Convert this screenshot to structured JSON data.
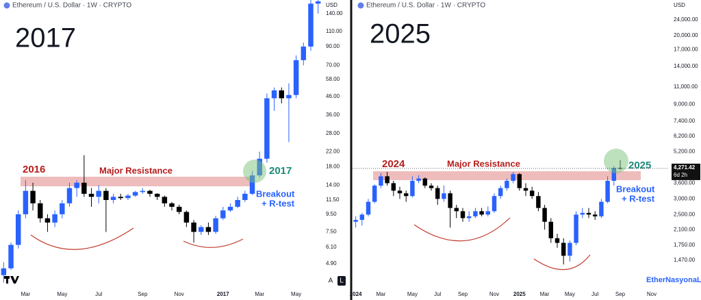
{
  "chart_data": [
    {
      "type": "candlestick",
      "title": "2017",
      "header": "Ethereum / U.S. Dollar · 1W · CRYPTO",
      "currency": "USD",
      "log_scale": true,
      "up_color": "#2962ff",
      "down_color": "#000000",
      "categories": [
        null,
        null,
        null,
        "Mar",
        null,
        null,
        null,
        null,
        "May",
        null,
        null,
        null,
        null,
        "Jul",
        null,
        null,
        null,
        null,
        null,
        "Sep",
        null,
        null,
        null,
        null,
        "Nov",
        null,
        null,
        null,
        null,
        null,
        "2017",
        null,
        null,
        null,
        null,
        "Mar",
        null,
        null,
        null,
        null,
        "May",
        null,
        null,
        null
      ],
      "open": [
        4.2,
        4.6,
        6.3,
        9.5,
        13,
        11,
        9,
        8.5,
        9.5,
        11,
        13.5,
        14.5,
        12.5,
        12,
        13,
        11.5,
        12,
        11.8,
        12.2,
        12.8,
        13,
        12.5,
        12,
        11,
        10.5,
        9.8,
        8.5,
        7.5,
        8,
        7.5,
        9,
        10,
        10.5,
        11.5,
        12.5,
        16,
        20,
        45,
        50,
        45,
        47,
        75,
        90,
        160
      ],
      "high": [
        5,
        6.5,
        10,
        15,
        14.5,
        11.5,
        9.5,
        10,
        11.5,
        14.5,
        15,
        21,
        13.5,
        14,
        13.5,
        12.5,
        12.5,
        12.5,
        13,
        13.5,
        13.2,
        12.6,
        12.2,
        11.2,
        10.8,
        10,
        8.8,
        8.2,
        8.5,
        9.3,
        10.5,
        11,
        12,
        13,
        17,
        22,
        48,
        52,
        52,
        55,
        80,
        95,
        170,
        170
      ],
      "low": [
        3.8,
        4.5,
        6,
        9,
        10,
        8.5,
        7.5,
        8,
        9,
        10.5,
        12,
        12,
        10.5,
        11,
        7.5,
        11,
        11.5,
        11.5,
        12,
        12.5,
        12,
        11.5,
        10.5,
        10,
        9.5,
        8,
        6.5,
        7.2,
        7.2,
        7.3,
        8.8,
        9.8,
        10.3,
        11.2,
        12.3,
        15.5,
        19,
        38,
        42,
        25,
        45,
        70,
        85,
        140
      ],
      "close": [
        4.6,
        6.3,
        9.5,
        13,
        11,
        9,
        8.5,
        9.5,
        11,
        13.5,
        14.5,
        12.5,
        12,
        13,
        11.5,
        12,
        11.8,
        12.2,
        12.8,
        13,
        12.5,
        12,
        11,
        10.5,
        9.8,
        8.5,
        7.5,
        8,
        7.5,
        9,
        10,
        10.5,
        11.5,
        12.5,
        16,
        20,
        45,
        50,
        45,
        47,
        75,
        90,
        160,
        165
      ],
      "ylim": [
        3.55,
        168
      ],
      "yticks": [
        {
          "value": 4.9,
          "label": "4.90"
        },
        {
          "value": 6.1,
          "label": "6.10"
        },
        {
          "value": 7.5,
          "label": "7.50"
        },
        {
          "value": 9.5,
          "label": "9.50"
        },
        {
          "value": 11.5,
          "label": "11.50"
        },
        {
          "value": 14,
          "label": "14.00"
        },
        {
          "value": 18,
          "label": "18.00"
        },
        {
          "value": 22,
          "label": "22.00"
        },
        {
          "value": 28,
          "label": "28.00"
        },
        {
          "value": 36,
          "label": "36.00"
        },
        {
          "value": 46,
          "label": "46.00"
        },
        {
          "value": 58,
          "label": "58.00"
        },
        {
          "value": 70,
          "label": "70.00"
        },
        {
          "value": 90,
          "label": "90.00"
        },
        {
          "value": 110,
          "label": "110.00"
        },
        {
          "value": 140,
          "label": "140.00"
        }
      ],
      "annotations": [
        "2016",
        "Major Resistance",
        "2017",
        "Breakout",
        "+ R-test"
      ],
      "buttons": [
        "A",
        "L"
      ]
    },
    {
      "type": "candlestick",
      "title": "2025",
      "header": "Ethereum / U.S. Dollar · 1W · CRYPTO",
      "currency": "USD",
      "log_scale": true,
      "up_color": "#2962ff",
      "down_color": "#000000",
      "categories": [
        "2024",
        null,
        null,
        null,
        "Mar",
        null,
        null,
        null,
        null,
        "May",
        null,
        null,
        null,
        "Jul",
        null,
        null,
        null,
        "Sep",
        null,
        null,
        null,
        null,
        "Nov",
        null,
        null,
        null,
        "2025",
        null,
        null,
        null,
        "Mar",
        null,
        null,
        null,
        "May",
        null,
        null,
        null,
        "Jul",
        null,
        null,
        null,
        "Sep",
        null,
        null,
        null,
        null,
        "Nov",
        null,
        null
      ],
      "open": [
        2300,
        2350,
        2500,
        2900,
        3500,
        3900,
        3600,
        3300,
        3200,
        3100,
        3700,
        3800,
        3500,
        3400,
        3000,
        3200,
        2700,
        2600,
        2400,
        2450,
        2600,
        2500,
        2600,
        3100,
        3400,
        3700,
        4000,
        3400,
        3300,
        3100,
        2700,
        2300,
        1900,
        1800,
        1550,
        1800,
        2500,
        2550,
        2500,
        2450,
        2900,
        3700,
        4300,
        null,
        null,
        null,
        null,
        null,
        null,
        null
      ],
      "high": [
        2450,
        2550,
        3000,
        3550,
        4050,
        4100,
        3700,
        3450,
        3300,
        3900,
        3950,
        3850,
        3600,
        3500,
        3500,
        3300,
        2800,
        2700,
        2600,
        2700,
        2700,
        2750,
        3200,
        3500,
        3800,
        4100,
        4050,
        3600,
        3450,
        3250,
        2800,
        2400,
        2000,
        1900,
        1850,
        2600,
        2700,
        2700,
        2600,
        3000,
        3900,
        4400,
        4700,
        null,
        null,
        null,
        null,
        null,
        null,
        null
      ],
      "low": [
        2150,
        2200,
        2450,
        2850,
        3400,
        3500,
        3100,
        3000,
        2900,
        3050,
        3600,
        3400,
        3300,
        2800,
        2900,
        2150,
        2400,
        2300,
        2300,
        2400,
        2450,
        2450,
        2550,
        3000,
        3300,
        3600,
        3300,
        3100,
        3000,
        2600,
        2100,
        1800,
        1700,
        1400,
        1450,
        1750,
        2400,
        2400,
        2350,
        2400,
        2850,
        3500,
        4200,
        null,
        null,
        null,
        null,
        null,
        null,
        null
      ],
      "close": [
        2350,
        2500,
        2900,
        3500,
        3900,
        3600,
        3300,
        3200,
        3100,
        3700,
        3800,
        3500,
        3400,
        3000,
        3200,
        2700,
        2600,
        2400,
        2450,
        2600,
        2500,
        2600,
        3100,
        3400,
        3700,
        4000,
        3400,
        3300,
        3100,
        2700,
        2300,
        1900,
        1800,
        1550,
        1800,
        2500,
        2550,
        2500,
        2450,
        2900,
        3700,
        4300,
        4271.42,
        null,
        null,
        null,
        null,
        null,
        null,
        null
      ],
      "last_price_label": "4,271.42",
      "countdown": "6d 2h",
      "ylim": [
        1070,
        30200
      ],
      "yticks": [
        {
          "value": 1470,
          "label": "1,470.00"
        },
        {
          "value": 1750,
          "label": "1,750.00"
        },
        {
          "value": 2100,
          "label": "2,100.00"
        },
        {
          "value": 2500,
          "label": "2,500.00"
        },
        {
          "value": 3000,
          "label": "3,000.00"
        },
        {
          "value": 3600,
          "label": "3,600.00"
        },
        {
          "value": 5200,
          "label": "5,200.00"
        },
        {
          "value": 6200,
          "label": "6,200.00"
        },
        {
          "value": 7400,
          "label": "7,400.00"
        },
        {
          "value": 9000,
          "label": "9,000.00"
        },
        {
          "value": 11000,
          "label": "11,000.00"
        },
        {
          "value": 14000,
          "label": "14,000.00"
        },
        {
          "value": 17000,
          "label": "17,000.00"
        },
        {
          "value": 20000,
          "label": "20,000.00"
        },
        {
          "value": 24000,
          "label": "24,000.00"
        }
      ],
      "annotations": [
        "2024",
        "Major Resistance",
        "2025",
        "Breakout",
        "+ R-test"
      ],
      "watermark": "EtherNasyonaL"
    }
  ]
}
